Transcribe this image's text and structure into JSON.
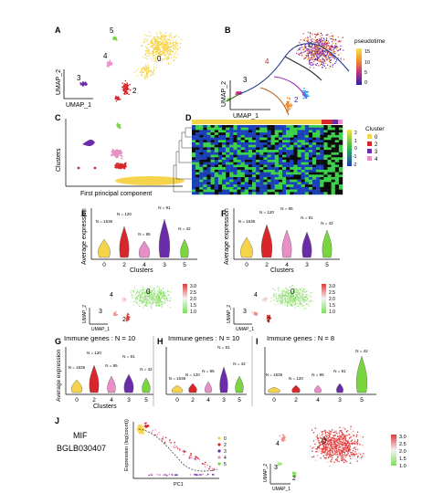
{
  "colors": {
    "c0": "#f5d34a",
    "c2": "#d9262a",
    "c3": "#6a2ca8",
    "c4": "#e88fc8",
    "c5": "#7ad63f",
    "expr_low": "#7be05a",
    "expr_high": "#e03a3a",
    "heat_blue": "#1a3fb8",
    "heat_green": "#3ad14a",
    "heat_black": "#0a0a0a"
  },
  "panels": {
    "A": {
      "letter": "A",
      "cluster_labels": [
        "0",
        "2",
        "3",
        "4",
        "5"
      ],
      "x_axis": "UMAP_1",
      "y_axis": "UMAP_2"
    },
    "B": {
      "letter": "B",
      "cluster_labels": [
        "0",
        "2",
        "3",
        "4"
      ],
      "x_axis": "UMAP_1",
      "y_axis": "UMAP_2",
      "legend_title": "pseudotime",
      "legend_ticks": [
        "15",
        "10",
        "5",
        "0"
      ]
    },
    "C": {
      "letter": "C",
      "y_axis": "Clusters",
      "x_axis": "First principal component"
    },
    "D": {
      "letter": "D",
      "legend_title": "Cluster",
      "legend_items": [
        "0",
        "2",
        "3",
        "4"
      ],
      "scale_ticks": [
        "2",
        "1",
        "0",
        "-1",
        "-2"
      ]
    },
    "E": {
      "letter": "E",
      "y_axis": "Average expression",
      "x_axis": "Clusters",
      "categories": [
        "0",
        "2",
        "4",
        "3",
        "5"
      ],
      "n_labels": [
        "N = 1636",
        "N = 120",
        "N = 95",
        "N = 91",
        "N = 42"
      ]
    },
    "F": {
      "letter": "F",
      "y_axis": "Average expression",
      "x_axis": "Clusters",
      "categories": [
        "0",
        "2",
        "4",
        "3",
        "5"
      ],
      "n_labels": [
        "N = 1636",
        "N = 120",
        "N = 95",
        "N = 91",
        "N = 42"
      ]
    },
    "E_umap": {
      "x_axis": "UMAP_1",
      "y_axis": "UMAP_2",
      "labels": [
        "0",
        "3",
        "4",
        "2"
      ],
      "scale_ticks": [
        "3.0",
        "2.5",
        "2.0",
        "1.5",
        "1.0"
      ]
    },
    "F_umap": {
      "x_axis": "UMAP_1",
      "y_axis": "UMAP_2",
      "labels": [
        "0",
        "3",
        "4",
        "2"
      ],
      "scale_ticks": [
        "3.0",
        "2.5",
        "2.0",
        "1.5",
        "1.0"
      ]
    },
    "G": {
      "letter": "G",
      "title": "Immune genes : N = 10",
      "y_axis": "Average expression",
      "x_axis": "Clusters",
      "categories": [
        "0",
        "2",
        "4",
        "3",
        "5"
      ],
      "n_labels": [
        "N = 1636",
        "N = 120",
        "N = 95",
        "N = 91",
        "N = 42"
      ]
    },
    "H": {
      "letter": "H",
      "title": "Immune genes : N = 10",
      "categories": [
        "0",
        "2",
        "4",
        "3",
        "5"
      ],
      "n_labels": [
        "N = 1636",
        "N = 120",
        "N = 95",
        "N = 91",
        "N = 42"
      ]
    },
    "I": {
      "letter": "I",
      "title": "Immune genes : N = 8",
      "categories": [
        "0",
        "2",
        "4",
        "3",
        "5"
      ],
      "n_labels": [
        "N = 1636",
        "N = 120",
        "N = 95",
        "N = 91",
        "N = 42"
      ]
    },
    "J": {
      "letter": "J",
      "gene_1": "MIF",
      "gene_2": "BGLB030407",
      "y_axis": "Expression (log(count))",
      "x_axis": "PC1",
      "legend_items": [
        "0",
        "2",
        "3",
        "4",
        "5"
      ],
      "umap_labels": [
        "0",
        "3",
        "4",
        "2"
      ],
      "umap_x": "UMAP_1",
      "umap_y": "UMAP_2",
      "scale_ticks": [
        "3.0",
        "2.5",
        "2.0",
        "1.5",
        "1.0"
      ]
    }
  }
}
